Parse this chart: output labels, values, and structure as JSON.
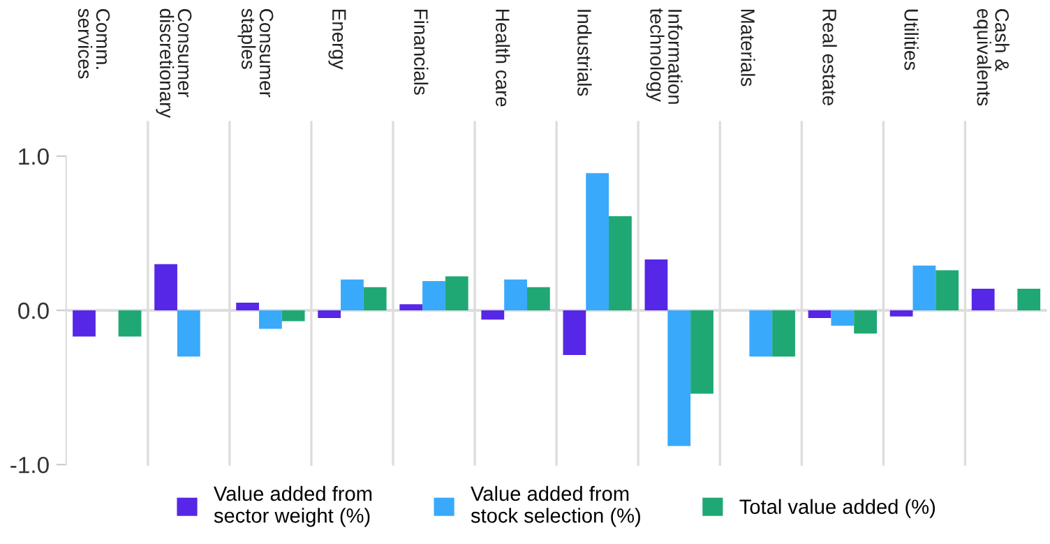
{
  "chart_data": {
    "type": "bar",
    "categories": [
      "Comm.\nservices",
      "Consumer\ndiscretionary",
      "Consumer\nstaples",
      "Energy",
      "Financials",
      "Health care",
      "Industrials",
      "Information\ntechnology",
      "Materials",
      "Real estate",
      "Utilities",
      "Cash &\nequivalents"
    ],
    "series": [
      {
        "name": "Value added from\nsector weight (%)",
        "color": "#5627e6",
        "values": [
          -0.17,
          0.3,
          0.05,
          -0.05,
          0.04,
          -0.06,
          -0.29,
          0.33,
          0.0,
          -0.05,
          -0.04,
          0.14
        ]
      },
      {
        "name": "Value added from\nstock selection (%)",
        "color": "#39a9fc",
        "values": [
          0.0,
          -0.3,
          -0.12,
          0.2,
          0.19,
          0.2,
          0.89,
          -0.88,
          -0.3,
          -0.1,
          0.29,
          0.0
        ]
      },
      {
        "name": "Total value added (%)",
        "color": "#1fa874",
        "values": [
          -0.17,
          0.0,
          -0.07,
          0.15,
          0.22,
          0.15,
          0.61,
          -0.54,
          -0.3,
          -0.15,
          0.26,
          0.14
        ]
      }
    ],
    "ylim": [
      -1.0,
      1.0
    ],
    "yticks": [
      {
        "value": 1.0,
        "label": "1.0"
      },
      {
        "value": 0.0,
        "label": "0.0"
      },
      {
        "value": -1.0,
        "label": "-1.0"
      }
    ],
    "ref_lines": [
      {
        "axis": "y",
        "value": 0.0,
        "color": "#dddddd"
      }
    ],
    "legend": "bottom"
  }
}
